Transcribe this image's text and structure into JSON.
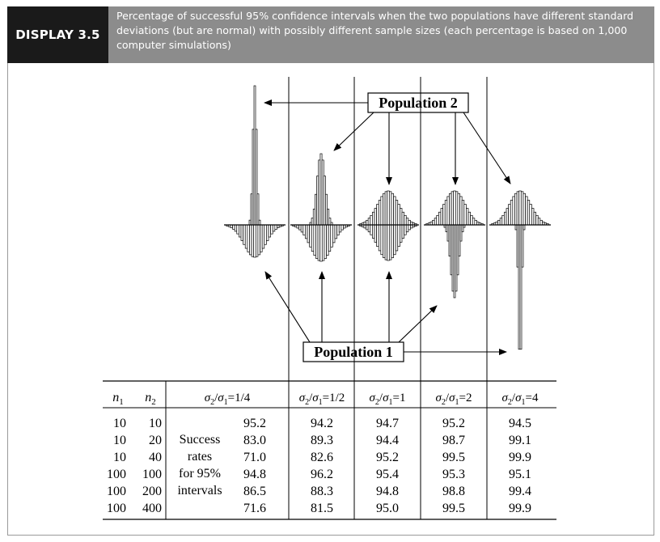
{
  "header": {
    "display_label": "DISPLAY 3.5",
    "caption": "Percentage of successful 95% confidence intervals when the two populations have different standard deviations (but are normal) with possibly different sample sizes (each percentage is based on 1,000 computer simulations)"
  },
  "figure": {
    "population2_label": "Population 2",
    "population1_label": "Population 1"
  },
  "table": {
    "col_n1": "n",
    "col_n1_sub": "1",
    "col_n2": "n",
    "col_n2_sub": "2",
    "ratio_columns": [
      "1/4",
      "1/2",
      "1",
      "2",
      "4"
    ],
    "row_note": [
      "Success",
      "rates",
      "for 95%",
      "intervals"
    ],
    "rows": [
      {
        "n1": "10",
        "n2": "10",
        "values": [
          "95.2",
          "94.2",
          "94.7",
          "95.2",
          "94.5"
        ]
      },
      {
        "n1": "10",
        "n2": "20",
        "values": [
          "83.0",
          "89.3",
          "94.4",
          "98.7",
          "99.1"
        ]
      },
      {
        "n1": "10",
        "n2": "40",
        "values": [
          "71.0",
          "82.6",
          "95.2",
          "99.5",
          "99.9"
        ]
      },
      {
        "n1": "100",
        "n2": "100",
        "values": [
          "94.8",
          "96.2",
          "95.4",
          "95.3",
          "95.1"
        ]
      },
      {
        "n1": "100",
        "n2": "200",
        "values": [
          "86.5",
          "88.3",
          "94.8",
          "98.8",
          "99.4"
        ]
      },
      {
        "n1": "100",
        "n2": "400",
        "values": [
          "71.6",
          "81.5",
          "95.0",
          "99.5",
          "99.9"
        ]
      }
    ]
  }
}
